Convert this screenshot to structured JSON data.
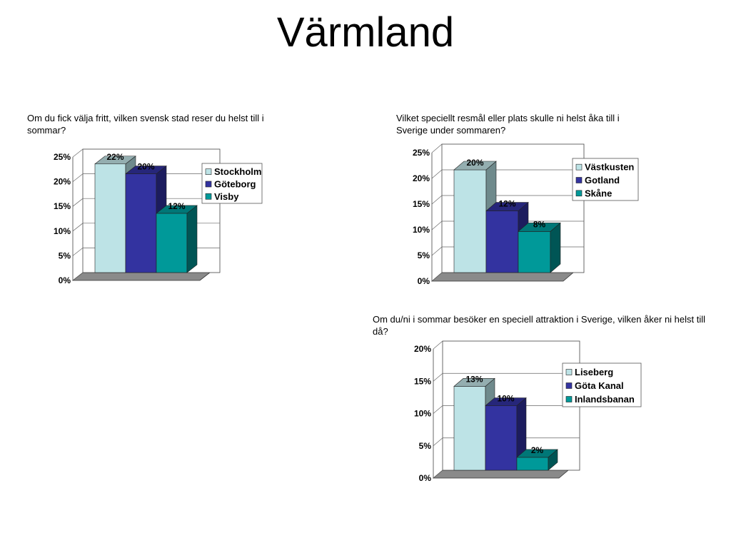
{
  "page": {
    "title": "Värmland"
  },
  "colors": {
    "series": [
      "#bde3e6",
      "#3333a0",
      "#009999"
    ],
    "side": [
      "#6f8a8c",
      "#1c1c5e",
      "#005555"
    ],
    "top": [
      "#94aeb0",
      "#26267a",
      "#007777"
    ]
  },
  "chart_data": [
    {
      "type": "bar",
      "question": "Om du fick välja fritt, vilken svensk stad reser du helst till i sommar?",
      "series": [
        {
          "name": "Stockholm",
          "value": 22,
          "label": "22%"
        },
        {
          "name": "Göteborg",
          "value": 20,
          "label": "20%"
        },
        {
          "name": "Visby",
          "value": 12,
          "label": "12%"
        }
      ],
      "ylim": [
        0,
        25
      ],
      "yticks": [
        "0%",
        "5%",
        "10%",
        "15%",
        "20%",
        "25%"
      ],
      "grid": true,
      "legend": "top-right"
    },
    {
      "type": "bar",
      "question": "Vilket speciellt resmål eller plats skulle ni helst åka till i Sverige under sommaren?",
      "series": [
        {
          "name": "Västkusten",
          "value": 20,
          "label": "20%"
        },
        {
          "name": "Gotland",
          "value": 12,
          "label": "12%"
        },
        {
          "name": "Skåne",
          "value": 8,
          "label": "8%"
        }
      ],
      "ylim": [
        0,
        25
      ],
      "yticks": [
        "0%",
        "5%",
        "10%",
        "15%",
        "20%",
        "25%"
      ],
      "grid": true,
      "legend": "top-right"
    },
    {
      "type": "bar",
      "question": "Om du/ni i sommar besöker en speciell attraktion i Sverige, vilken åker ni helst till då?",
      "series": [
        {
          "name": "Liseberg",
          "value": 13,
          "label": "13%"
        },
        {
          "name": "Göta Kanal",
          "value": 10,
          "label": "10%"
        },
        {
          "name": "Inlandsbanan",
          "value": 2,
          "label": "2%"
        }
      ],
      "ylim": [
        0,
        20
      ],
      "yticks": [
        "0%",
        "5%",
        "10%",
        "15%",
        "20%"
      ],
      "grid": true,
      "legend": "top-right"
    }
  ]
}
